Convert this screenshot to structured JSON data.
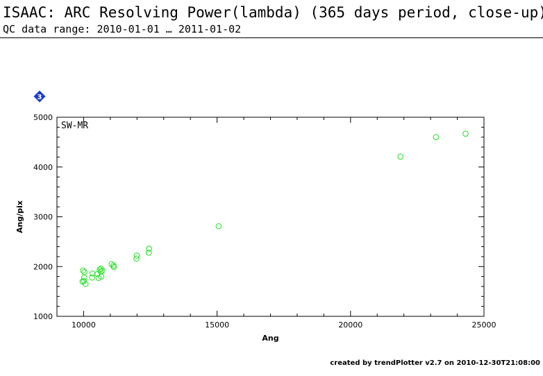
{
  "header": {
    "title": "ISAAC: ARC Resolving Power(lambda) (365 days period, close-up)",
    "subtitle": "QC data range: 2010-01-01 … 2011-01-02"
  },
  "badge": {
    "text": "3",
    "color": "#1a3cc8"
  },
  "footer": {
    "text": "created by trendPlotter v2.7 on 2010-12-30T21:08:00"
  },
  "chart_data": {
    "type": "scatter",
    "panel_label": "SW-MR",
    "xlabel": "Ang",
    "ylabel": "Ang/pix",
    "xlim": [
      9000,
      25000
    ],
    "ylim": [
      1000,
      5000
    ],
    "xticks": [
      10000,
      15000,
      20000,
      25000
    ],
    "yticks": [
      1000,
      2000,
      3000,
      4000,
      5000
    ],
    "marker_color": "#22dd22",
    "series": [
      {
        "points": [
          [
            9980,
            1920
          ],
          [
            10030,
            1890
          ],
          [
            10020,
            1780
          ],
          [
            9960,
            1700
          ],
          [
            10010,
            1710
          ],
          [
            10070,
            1650
          ],
          [
            10330,
            1860
          ],
          [
            10320,
            1780
          ],
          [
            10520,
            1850
          ],
          [
            10560,
            1770
          ],
          [
            10600,
            1940
          ],
          [
            10640,
            1900
          ],
          [
            10650,
            1960
          ],
          [
            10660,
            1800
          ],
          [
            10700,
            1920
          ],
          [
            11050,
            2050
          ],
          [
            11120,
            2020
          ],
          [
            11130,
            1990
          ],
          [
            11990,
            2220
          ],
          [
            11980,
            2160
          ],
          [
            12450,
            2360
          ],
          [
            12440,
            2280
          ],
          [
            15060,
            2810
          ],
          [
            21870,
            4210
          ],
          [
            23200,
            4600
          ],
          [
            24310,
            4670
          ]
        ]
      }
    ]
  }
}
